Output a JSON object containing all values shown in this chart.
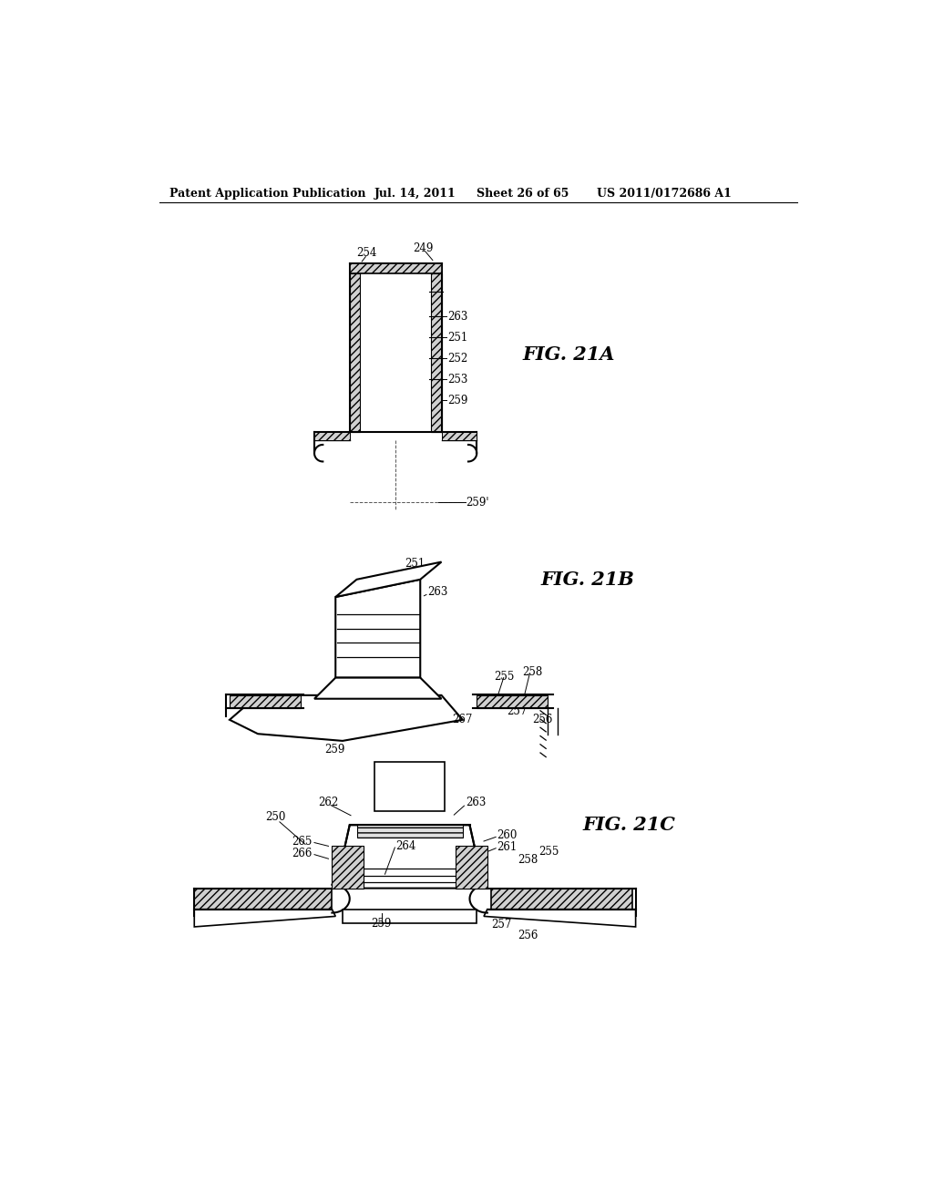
{
  "bg_color": "#ffffff",
  "header_text": "Patent Application Publication",
  "header_date": "Jul. 14, 2011",
  "header_sheet": "Sheet 26 of 65",
  "header_patent": "US 2011/0172686 A1",
  "fig21a_label": "FIG. 21A",
  "fig21b_label": "FIG. 21B",
  "fig21c_label": "FIG. 21C"
}
